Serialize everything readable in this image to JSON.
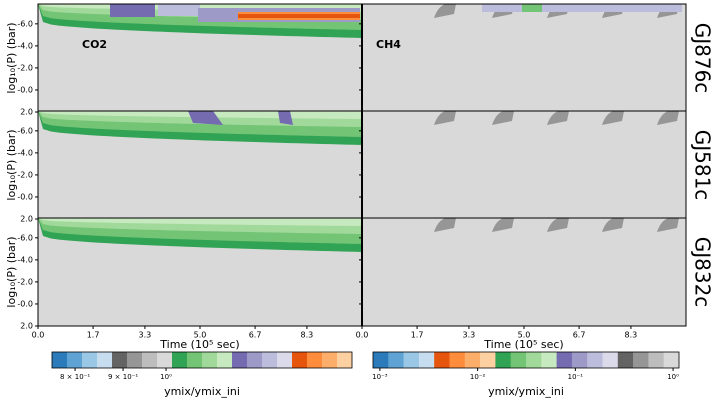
{
  "chart_data": {
    "type": "contour",
    "rows": [
      "GJ876c",
      "GJ581c",
      "GJ832c"
    ],
    "columns": [
      "CO2",
      "CH4"
    ],
    "xlabel": "Time (10⁵ sec)",
    "ylabel": "log₁₀(P) (bar)",
    "xlim": [
      0,
      10
    ],
    "xticks": [
      {
        "value": 0,
        "label": "0.0"
      },
      1.7,
      3.3,
      {
        "value": 5,
        "label": "5.0"
      },
      6.7,
      8.3
    ],
    "ylim": [
      2.0,
      -7.8
    ],
    "yticks": [
      {
        "value": -6,
        "label": "-6.0"
      },
      {
        "value": -4,
        "label": "-4.0"
      },
      {
        "value": -2,
        "label": "-2.0"
      },
      {
        "value": 0,
        "label": "-0.0"
      },
      {
        "value": 2,
        "label": "2.0"
      }
    ],
    "colorbars": [
      {
        "label": "ymix/ymix_ini",
        "log": true,
        "lim": [
          0.756,
          1.578
        ],
        "ticks": [
          {
            "value": 0.8,
            "label": "8 × 10⁻¹"
          },
          {
            "value": 0.9,
            "label": "9 × 10⁻¹"
          },
          {
            "value": 1,
            "label": "10⁰"
          }
        ],
        "colors": [
          "#2b7bba",
          "#5fa2d4",
          "#9ac7e5",
          "#c6dcef",
          "#636363",
          "#969696",
          "#bdbdbd",
          "#d9d9d9",
          "#31a354",
          "#74c476",
          "#a1d99b",
          "#c7e9c0",
          "#756bb1",
          "#9e9ac8",
          "#bcbddc",
          "#dadaeb",
          "#e6550d",
          "#fd8d3c",
          "#fdae6b",
          "#fdd0a2"
        ]
      },
      {
        "label": "ymix/ymix_ini",
        "log": true,
        "lim": [
          0.00085,
          1.15
        ],
        "ticks": [
          {
            "value": 0.001,
            "label": "10⁻³"
          },
          {
            "value": 0.01,
            "label": "10⁻²"
          },
          {
            "value": 0.1,
            "label": "10⁻¹"
          },
          {
            "value": 1,
            "label": "10⁰"
          }
        ],
        "colors": [
          "#2b7bba",
          "#5fa2d4",
          "#9ac7e5",
          "#c6dcef",
          "#e6550d",
          "#fd8d3c",
          "#fdae6b",
          "#fdd0a2",
          "#31a354",
          "#74c476",
          "#a1d99b",
          "#c7e9c0",
          "#756bb1",
          "#9e9ac8",
          "#bcbddc",
          "#dadaeb",
          "#636363",
          "#969696",
          "#bdbdbd",
          "#d9d9d9"
        ]
      }
    ]
  }
}
